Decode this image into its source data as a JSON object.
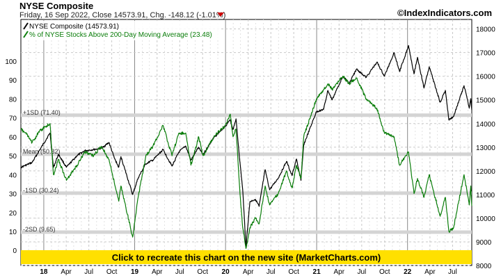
{
  "header": {
    "title": "NYSE Composite",
    "subtitle": "Friday, 16 Sep 2022, Close 14573.91, Chg. -148.12 (-1.01%)",
    "brand": "©IndexIndicators.com"
  },
  "banner": {
    "text": "Click to recreate this chart on the new site (MarketCharts.com)"
  },
  "colors": {
    "index_line": "#000000",
    "pct_line": "#0a7d0a",
    "band": "#d4d4d4",
    "grid": "#c8c8c8",
    "banner": "#ffe000",
    "down_arrow": "#cc0000"
  },
  "chart_data": {
    "type": "line",
    "grid": true,
    "legend_position": "top-left",
    "x_range": [
      "2017-10-01",
      "2022-09-16"
    ],
    "left_axis": {
      "ticks": [
        0,
        10,
        20,
        30,
        40,
        50,
        60,
        70,
        80,
        90,
        100
      ],
      "range": [
        -8,
        122
      ]
    },
    "right_axis": {
      "ticks": [
        8000,
        9000,
        10000,
        11000,
        12000,
        13000,
        14000,
        15000,
        16000,
        17000,
        18000
      ],
      "range": [
        8000,
        18400
      ]
    },
    "x_ticks": [
      {
        "date": "2018-01-01",
        "label": "18",
        "year": true
      },
      {
        "date": "2018-04-01",
        "label": "Apr"
      },
      {
        "date": "2018-07-01",
        "label": "Jul"
      },
      {
        "date": "2018-10-01",
        "label": "Oct"
      },
      {
        "date": "2019-01-01",
        "label": "19",
        "year": true
      },
      {
        "date": "2019-04-01",
        "label": "Apr"
      },
      {
        "date": "2019-07-01",
        "label": "Jul"
      },
      {
        "date": "2019-10-01",
        "label": "Oct"
      },
      {
        "date": "2020-01-01",
        "label": "20",
        "year": true
      },
      {
        "date": "2020-04-01",
        "label": "Apr"
      },
      {
        "date": "2020-07-01",
        "label": "Jul"
      },
      {
        "date": "2020-10-01",
        "label": "Oct"
      },
      {
        "date": "2021-01-01",
        "label": "21",
        "year": true
      },
      {
        "date": "2021-04-01",
        "label": "Apr"
      },
      {
        "date": "2021-07-01",
        "label": "Jul"
      },
      {
        "date": "2021-10-01",
        "label": "Oct"
      },
      {
        "date": "2022-01-01",
        "label": "22",
        "year": true
      },
      {
        "date": "2022-04-01",
        "label": "Apr"
      },
      {
        "date": "2022-07-01",
        "label": "Jul"
      }
    ],
    "bands": [
      {
        "label": "+1SD (71.40)",
        "value": 71.4
      },
      {
        "label": "Mean (50.82)",
        "value": 50.82
      },
      {
        "label": "-1SD (30.24)",
        "value": 30.24
      },
      {
        "label": "-2SD (9.65)",
        "value": 9.65
      }
    ],
    "series": [
      {
        "name": "NYSE Composite (14573.91)",
        "axis": "right",
        "points": [
          [
            "2017-10-01",
            12150
          ],
          [
            "2017-11-15",
            12350
          ],
          [
            "2018-01-26",
            13600
          ],
          [
            "2018-02-09",
            12150
          ],
          [
            "2018-03-01",
            12700
          ],
          [
            "2018-04-02",
            12150
          ],
          [
            "2018-05-15",
            12650
          ],
          [
            "2018-06-15",
            12850
          ],
          [
            "2018-07-20",
            12900
          ],
          [
            "2018-08-20",
            12950
          ],
          [
            "2018-09-20",
            13200
          ],
          [
            "2018-10-11",
            12550
          ],
          [
            "2018-10-29",
            12150
          ],
          [
            "2018-11-07",
            12600
          ],
          [
            "2018-11-23",
            12050
          ],
          [
            "2018-12-24",
            11000
          ],
          [
            "2019-01-15",
            11700
          ],
          [
            "2019-02-15",
            12300
          ],
          [
            "2019-03-15",
            12450
          ],
          [
            "2019-04-25",
            12900
          ],
          [
            "2019-05-31",
            12200
          ],
          [
            "2019-06-28",
            12800
          ],
          [
            "2019-07-25",
            13050
          ],
          [
            "2019-08-15",
            12450
          ],
          [
            "2019-09-15",
            13000
          ],
          [
            "2019-10-03",
            12700
          ],
          [
            "2019-11-15",
            13400
          ],
          [
            "2019-12-31",
            13900
          ],
          [
            "2020-01-20",
            14150
          ],
          [
            "2020-01-31",
            13750
          ],
          [
            "2020-02-12",
            14200
          ],
          [
            "2020-02-28",
            12350
          ],
          [
            "2020-03-10",
            11200
          ],
          [
            "2020-03-23",
            8800
          ],
          [
            "2020-04-08",
            10700
          ],
          [
            "2020-04-30",
            10800
          ],
          [
            "2020-05-15",
            10500
          ],
          [
            "2020-06-08",
            12050
          ],
          [
            "2020-06-26",
            11200
          ],
          [
            "2020-07-31",
            11700
          ],
          [
            "2020-09-02",
            12400
          ],
          [
            "2020-09-24",
            11800
          ],
          [
            "2020-10-12",
            12500
          ],
          [
            "2020-10-30",
            11600
          ],
          [
            "2020-11-10",
            13100
          ],
          [
            "2020-12-31",
            14500
          ],
          [
            "2021-01-29",
            14600
          ],
          [
            "2021-02-15",
            15400
          ],
          [
            "2021-03-04",
            15000
          ],
          [
            "2021-04-16",
            16000
          ],
          [
            "2021-05-12",
            15700
          ],
          [
            "2021-06-10",
            16300
          ],
          [
            "2021-07-19",
            15950
          ],
          [
            "2021-08-31",
            16600
          ],
          [
            "2021-09-30",
            16000
          ],
          [
            "2021-11-08",
            17000
          ],
          [
            "2021-11-30",
            16200
          ],
          [
            "2022-01-05",
            17300
          ],
          [
            "2022-01-27",
            16100
          ],
          [
            "2022-02-10",
            16800
          ],
          [
            "2022-03-08",
            15500
          ],
          [
            "2022-03-29",
            16400
          ],
          [
            "2022-05-12",
            14900
          ],
          [
            "2022-06-02",
            15400
          ],
          [
            "2022-06-16",
            14150
          ],
          [
            "2022-07-05",
            14300
          ],
          [
            "2022-08-16",
            15600
          ],
          [
            "2022-09-06",
            14650
          ],
          [
            "2022-09-12",
            15050
          ],
          [
            "2022-09-16",
            14574
          ]
        ]
      },
      {
        "name": "% of NYSE Stocks Above 200-Day Moving Average (23.48)",
        "axis": "left",
        "points": [
          [
            "2017-10-01",
            64
          ],
          [
            "2017-10-20",
            62
          ],
          [
            "2017-11-15",
            57
          ],
          [
            "2017-12-15",
            63
          ],
          [
            "2018-01-26",
            67
          ],
          [
            "2018-02-09",
            40
          ],
          [
            "2018-03-01",
            48
          ],
          [
            "2018-04-02",
            37
          ],
          [
            "2018-05-15",
            45
          ],
          [
            "2018-06-15",
            52
          ],
          [
            "2018-07-20",
            50
          ],
          [
            "2018-08-20",
            55
          ],
          [
            "2018-09-20",
            48
          ],
          [
            "2018-10-11",
            36
          ],
          [
            "2018-10-29",
            26
          ],
          [
            "2018-11-07",
            34
          ],
          [
            "2018-12-24",
            7
          ],
          [
            "2019-01-15",
            28
          ],
          [
            "2019-02-15",
            50
          ],
          [
            "2019-03-15",
            55
          ],
          [
            "2019-04-25",
            66
          ],
          [
            "2019-05-31",
            50
          ],
          [
            "2019-06-28",
            62
          ],
          [
            "2019-07-25",
            62
          ],
          [
            "2019-08-15",
            45
          ],
          [
            "2019-09-15",
            60
          ],
          [
            "2019-10-03",
            50
          ],
          [
            "2019-11-15",
            60
          ],
          [
            "2019-12-31",
            66
          ],
          [
            "2020-01-20",
            72
          ],
          [
            "2020-01-31",
            60
          ],
          [
            "2020-02-12",
            64
          ],
          [
            "2020-02-28",
            30
          ],
          [
            "2020-03-10",
            12
          ],
          [
            "2020-03-23",
            1
          ],
          [
            "2020-04-08",
            12
          ],
          [
            "2020-04-30",
            17
          ],
          [
            "2020-05-15",
            14
          ],
          [
            "2020-06-08",
            34
          ],
          [
            "2020-06-26",
            24
          ],
          [
            "2020-07-31",
            30
          ],
          [
            "2020-09-02",
            42
          ],
          [
            "2020-09-24",
            33
          ],
          [
            "2020-10-12",
            45
          ],
          [
            "2020-10-30",
            38
          ],
          [
            "2020-11-10",
            60
          ],
          [
            "2020-12-31",
            80
          ],
          [
            "2021-01-29",
            85
          ],
          [
            "2021-02-15",
            88
          ],
          [
            "2021-03-04",
            85
          ],
          [
            "2021-04-16",
            92
          ],
          [
            "2021-05-12",
            88
          ],
          [
            "2021-06-10",
            91
          ],
          [
            "2021-07-19",
            80
          ],
          [
            "2021-08-31",
            75
          ],
          [
            "2021-09-30",
            62
          ],
          [
            "2021-11-08",
            60
          ],
          [
            "2021-11-30",
            45
          ],
          [
            "2022-01-05",
            52
          ],
          [
            "2022-01-27",
            30
          ],
          [
            "2022-02-10",
            38
          ],
          [
            "2022-03-08",
            28
          ],
          [
            "2022-03-29",
            40
          ],
          [
            "2022-05-12",
            18
          ],
          [
            "2022-06-02",
            28
          ],
          [
            "2022-06-16",
            10
          ],
          [
            "2022-07-05",
            12
          ],
          [
            "2022-08-16",
            40
          ],
          [
            "2022-09-06",
            24
          ],
          [
            "2022-09-12",
            34
          ],
          [
            "2022-09-16",
            23.48
          ]
        ]
      }
    ]
  }
}
